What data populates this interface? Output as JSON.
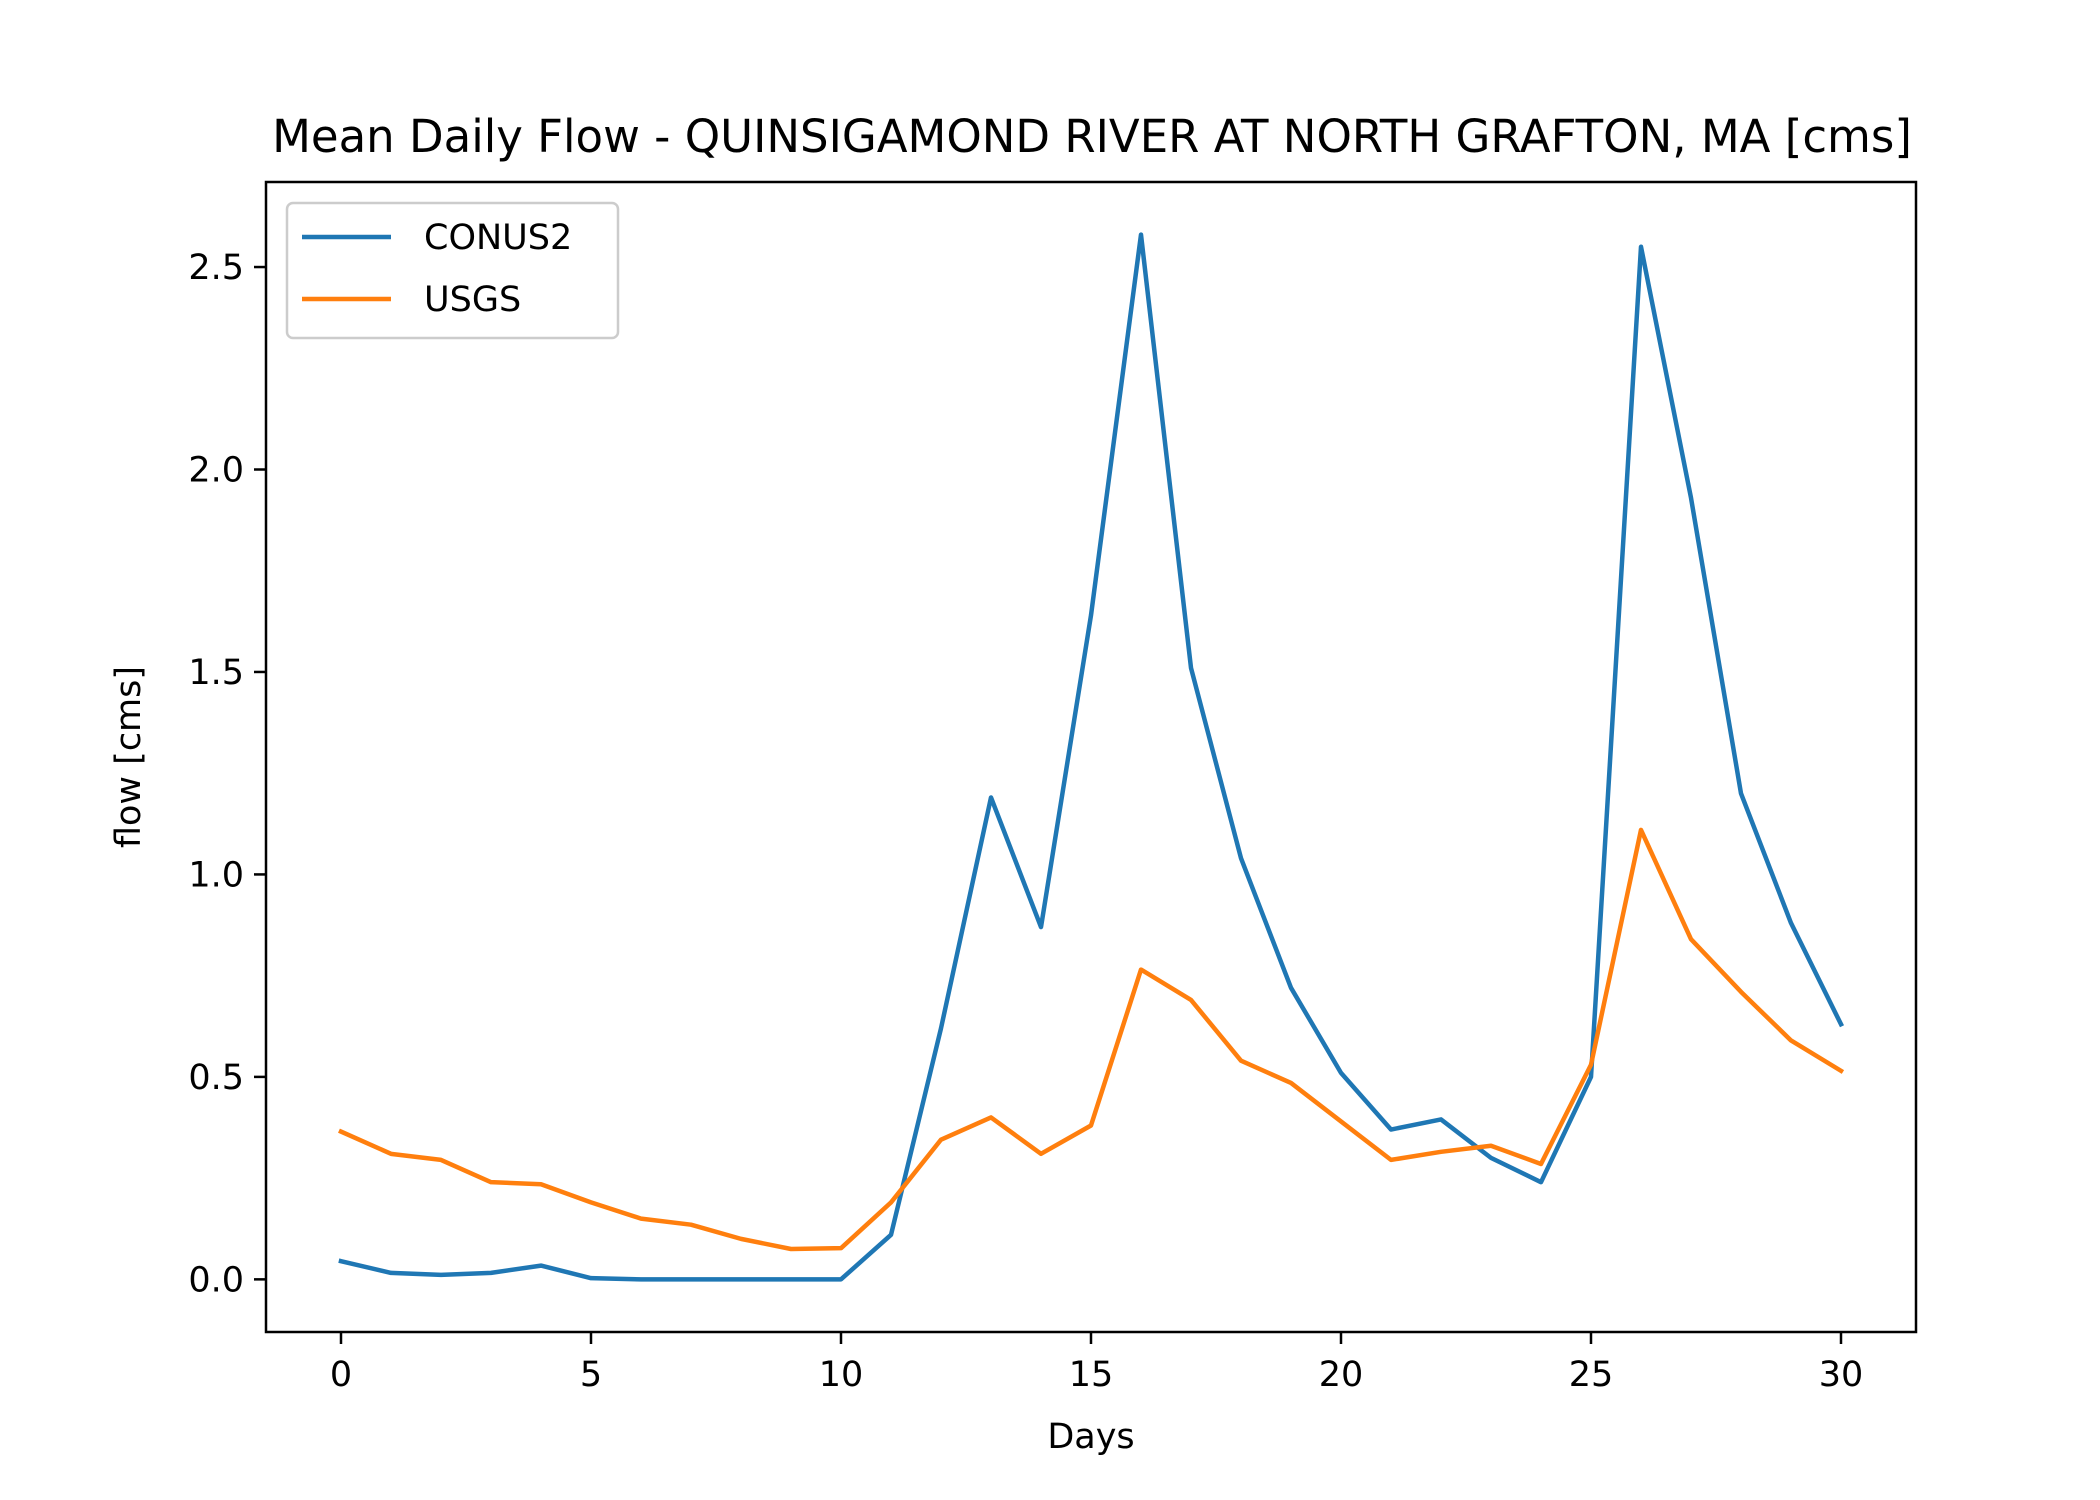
{
  "chart_data": {
    "type": "line",
    "title": "Mean Daily Flow - QUINSIGAMOND RIVER AT NORTH GRAFTON, MA [cms]",
    "xlabel": "Days",
    "ylabel": "flow [cms]",
    "xlim": [
      -1.5,
      31.5
    ],
    "ylim": [
      -0.13,
      2.71
    ],
    "xticks": [
      0,
      5,
      10,
      15,
      20,
      25,
      30
    ],
    "xtick_labels": [
      "0",
      "5",
      "10",
      "15",
      "20",
      "25",
      "30"
    ],
    "yticks": [
      0.0,
      0.5,
      1.0,
      1.5,
      2.0,
      2.5
    ],
    "ytick_labels": [
      "0.0",
      "0.5",
      "1.0",
      "1.5",
      "2.0",
      "2.5"
    ],
    "grid": false,
    "legend_position": "upper-left",
    "x": [
      0,
      1,
      2,
      3,
      4,
      5,
      6,
      7,
      8,
      9,
      10,
      11,
      12,
      13,
      14,
      15,
      16,
      17,
      18,
      19,
      20,
      21,
      22,
      23,
      24,
      25,
      26,
      27,
      28,
      29,
      30
    ],
    "series": [
      {
        "name": "CONUS2",
        "color": "#1f77b4",
        "values": [
          0.045,
          0.016,
          0.011,
          0.016,
          0.034,
          0.003,
          0.0,
          0.0,
          0.0,
          0.0,
          0.0,
          0.11,
          0.62,
          1.19,
          0.87,
          1.64,
          2.58,
          1.51,
          1.04,
          0.72,
          0.51,
          0.37,
          0.395,
          0.3,
          0.24,
          0.5,
          2.55,
          1.93,
          1.2,
          0.88,
          0.63
        ]
      },
      {
        "name": "USGS",
        "color": "#ff7f0e",
        "values": [
          0.365,
          0.31,
          0.295,
          0.24,
          0.235,
          0.19,
          0.15,
          0.135,
          0.1,
          0.075,
          0.077,
          0.19,
          0.345,
          0.4,
          0.31,
          0.38,
          0.765,
          0.69,
          0.54,
          0.485,
          0.39,
          0.295,
          0.315,
          0.33,
          0.285,
          0.53,
          1.11,
          0.84,
          0.71,
          0.59,
          0.515
        ]
      }
    ]
  }
}
